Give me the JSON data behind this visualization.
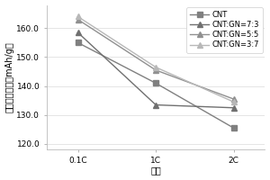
{
  "x_labels": [
    "0.1C",
    "1C",
    "2C"
  ],
  "x_positions": [
    0,
    1,
    2
  ],
  "series": [
    {
      "label": "CNT",
      "values": [
        155.0,
        141.0,
        125.5
      ],
      "color": "#808080",
      "marker": "s",
      "markersize": 4,
      "linewidth": 1.0
    },
    {
      "label": "CNT:GN=7:3",
      "values": [
        158.5,
        133.5,
        132.5
      ],
      "color": "#707070",
      "marker": "^",
      "markersize": 4,
      "linewidth": 1.0
    },
    {
      "label": "CNT:GN=5:5",
      "values": [
        163.0,
        145.5,
        135.5
      ],
      "color": "#909090",
      "marker": "^",
      "markersize": 4,
      "linewidth": 1.0
    },
    {
      "label": "CNT:GN=3:7",
      "values": [
        164.0,
        146.5,
        134.5
      ],
      "color": "#b8b8b8",
      "marker": "^",
      "markersize": 4,
      "linewidth": 1.0
    }
  ],
  "ylabel": "首次放电容量（mAh/g）",
  "xlabel": "倍率",
  "ylim": [
    118.0,
    168.0
  ],
  "yticks": [
    120.0,
    130.0,
    140.0,
    150.0,
    160.0
  ],
  "xlim": [
    -0.4,
    2.4
  ],
  "background_color": "#ffffff",
  "grid_color": "#e0e0e0",
  "axis_fontsize": 7,
  "legend_fontsize": 6.0,
  "tick_fontsize": 6.5
}
